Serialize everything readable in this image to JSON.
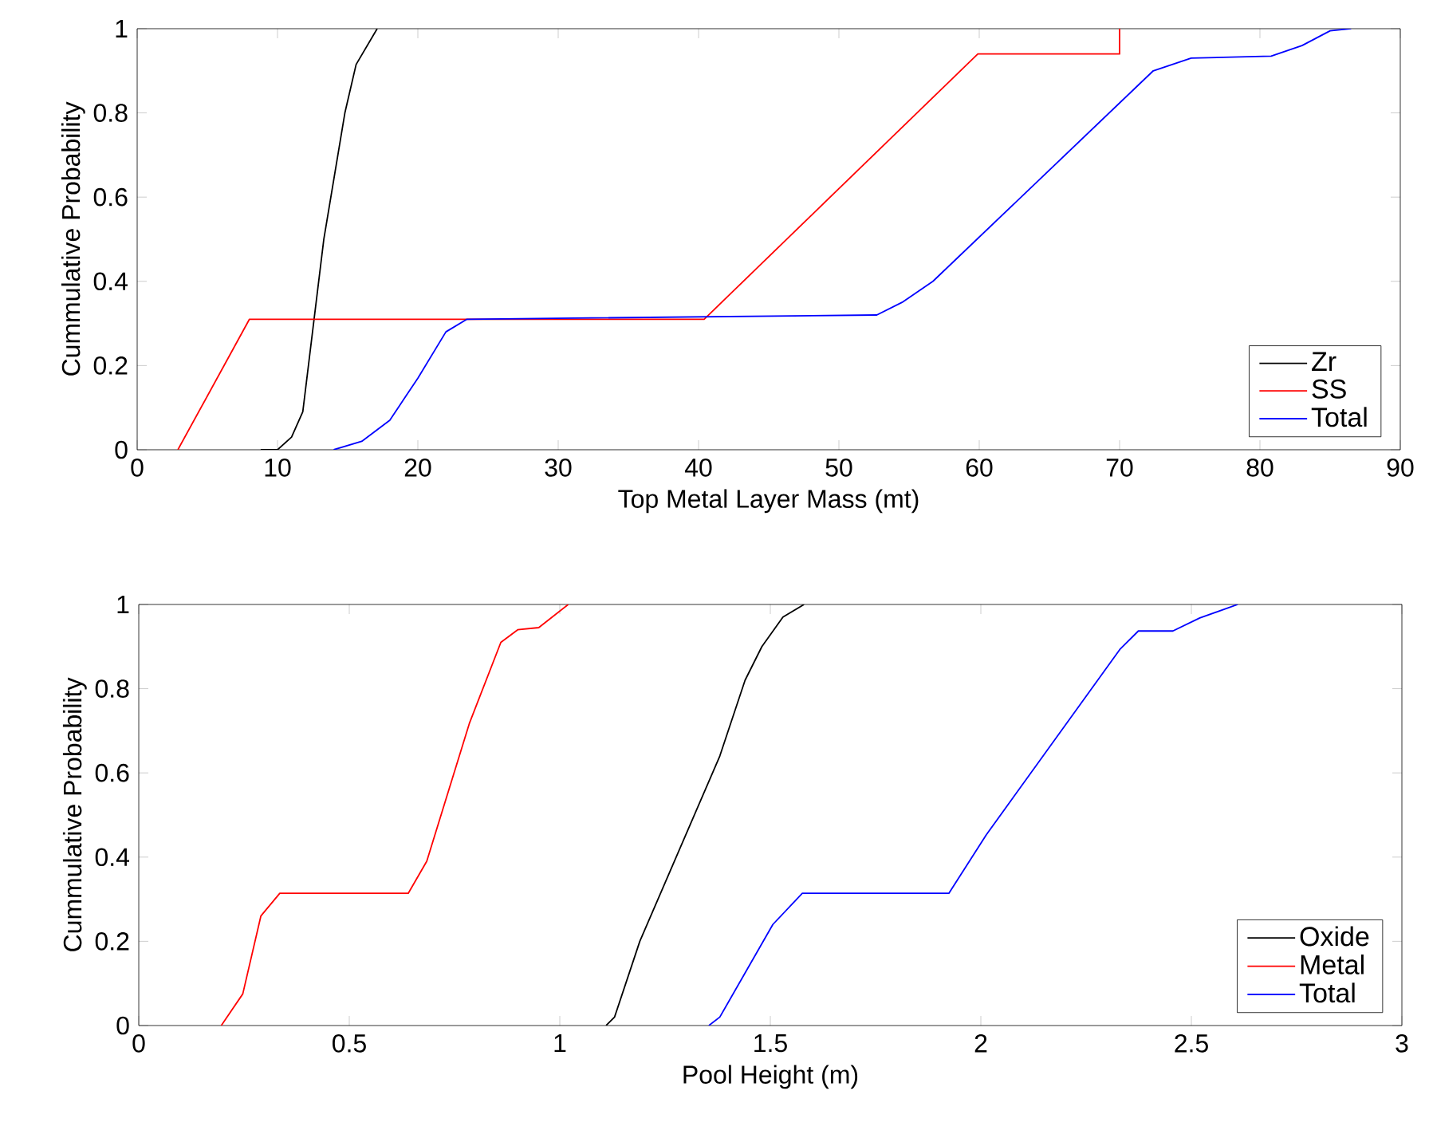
{
  "chart_data": [
    {
      "type": "line",
      "xlabel": "Top Metal Layer Mass (mt)",
      "ylabel": "Cummulative Probability",
      "xlim": [
        0,
        90
      ],
      "ylim": [
        0,
        1
      ],
      "xticks": [
        0,
        10,
        20,
        30,
        40,
        50,
        60,
        70,
        80,
        90
      ],
      "yticks": [
        0,
        0.2,
        0.4,
        0.6,
        0.8,
        1
      ],
      "legend": "bottom right",
      "grid": false,
      "series": [
        {
          "name": "Zr",
          "color": "#000000",
          "x": [
            8.8,
            10,
            11,
            11.8,
            13.3,
            14.8,
            15.6,
            17.1
          ],
          "values": [
            0,
            0,
            0.03,
            0.09,
            0.5,
            0.8,
            0.915,
            1
          ]
        },
        {
          "name": "SS",
          "color": "#ff0000",
          "x": [
            2.9,
            8,
            40.4,
            59.9,
            70,
            70
          ],
          "values": [
            0,
            0.31,
            0.31,
            0.94,
            0.94,
            1
          ]
        },
        {
          "name": "Total",
          "color": "#0000ff",
          "x": [
            14,
            16,
            18,
            20,
            22,
            23.5,
            52.7,
            54.5,
            56.7,
            72.4,
            75.1,
            80.8,
            83,
            85,
            86.5
          ],
          "values": [
            0,
            0.02,
            0.07,
            0.17,
            0.28,
            0.31,
            0.32,
            0.35,
            0.4,
            0.9,
            0.93,
            0.935,
            0.96,
            0.995,
            1
          ]
        }
      ]
    },
    {
      "type": "line",
      "xlabel": "Pool Height (m)",
      "ylabel": "Cummulative Probability",
      "xlim": [
        0,
        3
      ],
      "ylim": [
        0,
        1
      ],
      "xticks": [
        0,
        0.5,
        1,
        1.5,
        2,
        2.5,
        3
      ],
      "yticks": [
        0,
        0.2,
        0.4,
        0.6,
        0.8,
        1
      ],
      "legend": "bottom right",
      "grid": false,
      "series": [
        {
          "name": "Oxide",
          "color": "#000000",
          "x": [
            1.11,
            1.13,
            1.19,
            1.38,
            1.44,
            1.48,
            1.53,
            1.58
          ],
          "values": [
            0,
            0.02,
            0.2,
            0.64,
            0.82,
            0.9,
            0.97,
            1
          ]
        },
        {
          "name": "Metal",
          "color": "#ff0000",
          "x": [
            0.196,
            0.247,
            0.29,
            0.335,
            0.64,
            0.684,
            0.785,
            0.86,
            0.9,
            0.95,
            1.02
          ],
          "values": [
            0,
            0.075,
            0.26,
            0.314,
            0.314,
            0.39,
            0.717,
            0.91,
            0.94,
            0.945,
            1
          ]
        },
        {
          "name": "Total",
          "color": "#0000ff",
          "x": [
            1.354,
            1.38,
            1.506,
            1.576,
            1.924,
            2.013,
            2.33,
            2.374,
            2.456,
            2.52,
            2.61
          ],
          "values": [
            0,
            0.02,
            0.24,
            0.314,
            0.314,
            0.453,
            0.893,
            0.937,
            0.937,
            0.968,
            1
          ]
        }
      ]
    }
  ]
}
